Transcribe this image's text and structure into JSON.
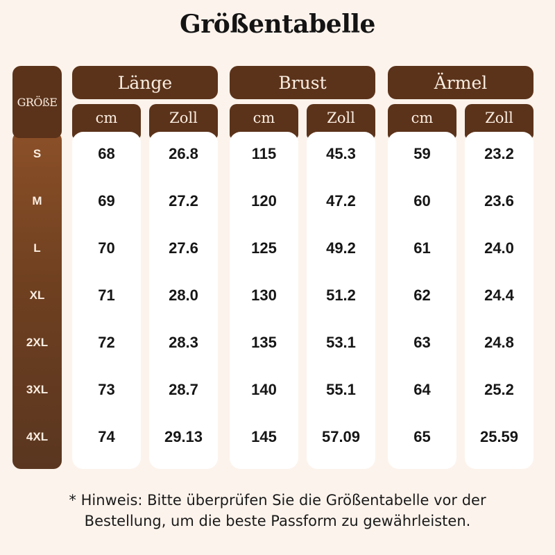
{
  "title": "Größentabelle",
  "size_header": "GRÖßE",
  "sizes": [
    "S",
    "M",
    "L",
    "XL",
    "2XL",
    "3XL",
    "4XL"
  ],
  "groups": [
    {
      "label": "Länge",
      "units": [
        "cm",
        "Zoll"
      ],
      "cm": [
        "68",
        "69",
        "70",
        "71",
        "72",
        "73",
        "74"
      ],
      "zoll": [
        "26.8",
        "27.2",
        "27.6",
        "28.0",
        "28.3",
        "28.7",
        "29.13"
      ]
    },
    {
      "label": "Brust",
      "units": [
        "cm",
        "Zoll"
      ],
      "cm": [
        "115",
        "120",
        "125",
        "130",
        "135",
        "140",
        "145"
      ],
      "zoll": [
        "45.3",
        "47.2",
        "49.2",
        "51.2",
        "53.1",
        "55.1",
        "57.09"
      ]
    },
    {
      "label": "Ärmel",
      "units": [
        "cm",
        "Zoll"
      ],
      "cm": [
        "59",
        "60",
        "61",
        "62",
        "63",
        "64",
        "65"
      ],
      "zoll": [
        "23.2",
        "23.6",
        "24.0",
        "24.4",
        "24.8",
        "25.2",
        "25.59"
      ]
    }
  ],
  "note": {
    "line1": "* Hinweis: Bitte überprüfen Sie die Größentabelle vor der",
    "line2": "Bestellung, um die beste Passform zu gewährleisten."
  },
  "colors": {
    "header_brown": "#5b331a",
    "size_gradient_top": "#8b5028",
    "size_gradient_bottom": "#5a3620",
    "background": "#fcf3ec",
    "cell_bg": "#ffffff"
  }
}
